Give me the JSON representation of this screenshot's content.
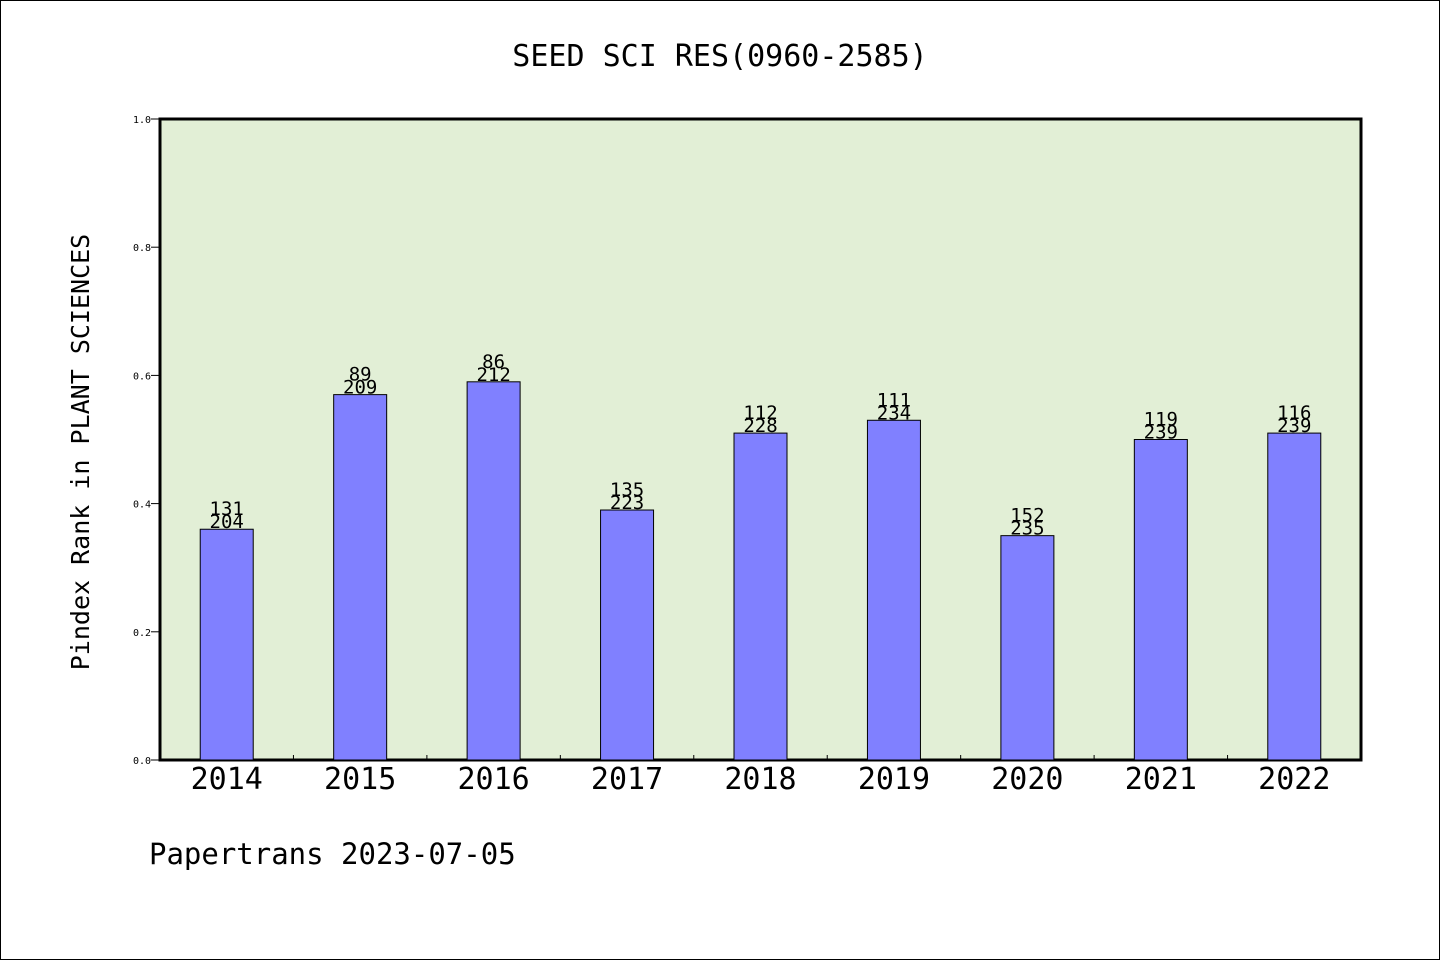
{
  "colors": {
    "plot_background": "#e2efd6",
    "bar_fill": "#8080ff",
    "bar_stroke": "#000000",
    "axis": "#000000",
    "page_background": "#ffffff"
  },
  "chart_data": {
    "type": "bar",
    "title": "SEED SCI RES(0960-2585)",
    "xlabel": "",
    "ylabel": "Pindex Rank in PLANT SCIENCES",
    "ylim": [
      0.0,
      1.0
    ],
    "yticks": [
      "0.0",
      "0.2",
      "0.4",
      "0.6",
      "0.8",
      "1.0"
    ],
    "ytick_values": [
      0.0,
      0.2,
      0.4,
      0.6,
      0.8,
      1.0
    ],
    "grid": false,
    "legend": "none",
    "categories": [
      "2014",
      "2015",
      "2016",
      "2017",
      "2018",
      "2019",
      "2020",
      "2021",
      "2022"
    ],
    "values": [
      0.36,
      0.57,
      0.59,
      0.39,
      0.51,
      0.53,
      0.35,
      0.5,
      0.51
    ],
    "label_top": [
      "131",
      "89",
      "86",
      "135",
      "112",
      "111",
      "152",
      "119",
      "116"
    ],
    "label_bottom": [
      "204",
      "209",
      "212",
      "223",
      "228",
      "234",
      "235",
      "239",
      "239"
    ]
  },
  "footer": {
    "text": "Papertrans 2023-07-05"
  }
}
